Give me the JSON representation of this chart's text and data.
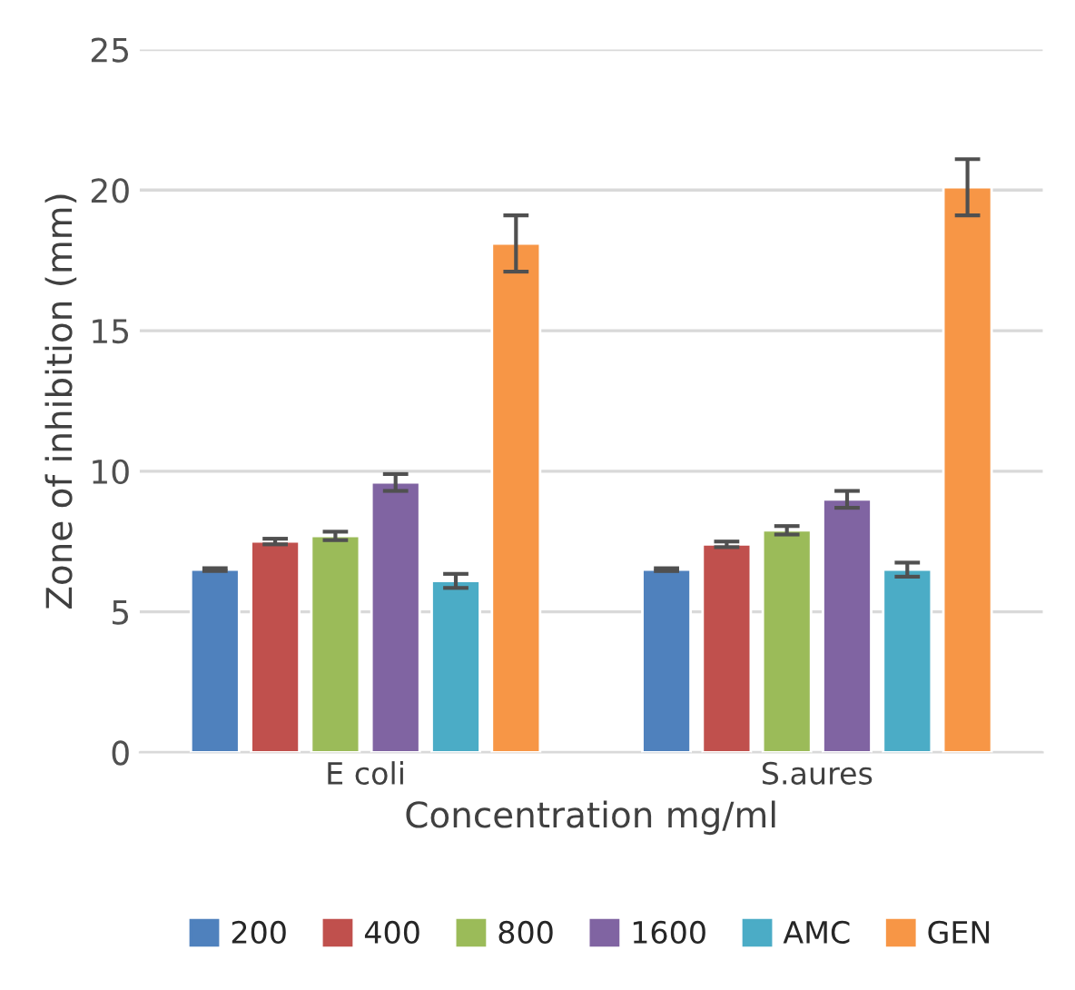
{
  "chart_data": {
    "type": "bar",
    "xlabel": "Concentration mg/ml",
    "ylabel": "Zone of inhibition (mm)",
    "categories": [
      "E coli",
      "S.aures"
    ],
    "series": [
      {
        "name": "200",
        "color": "#4f81bd",
        "values": [
          6.5,
          6.5
        ],
        "errors": [
          0.05,
          0.05
        ]
      },
      {
        "name": "400",
        "color": "#c0504d",
        "values": [
          7.5,
          7.4
        ],
        "errors": [
          0.1,
          0.1
        ]
      },
      {
        "name": "800",
        "color": "#9bbb59",
        "values": [
          7.7,
          7.9
        ],
        "errors": [
          0.15,
          0.15
        ]
      },
      {
        "name": "1600",
        "color": "#8064a2",
        "values": [
          9.6,
          9.0
        ],
        "errors": [
          0.3,
          0.3
        ]
      },
      {
        "name": "AMC",
        "color": "#4bacc6",
        "values": [
          6.1,
          6.5
        ],
        "errors": [
          0.25,
          0.25
        ]
      },
      {
        "name": "GEN",
        "color": "#f79646",
        "values": [
          18.1,
          20.1
        ],
        "errors": [
          1.0,
          1.0
        ]
      }
    ],
    "ylim": [
      0,
      25
    ],
    "yticks": [
      0,
      5,
      10,
      15,
      20,
      25
    ],
    "grid": "y",
    "legend": "bottom"
  }
}
